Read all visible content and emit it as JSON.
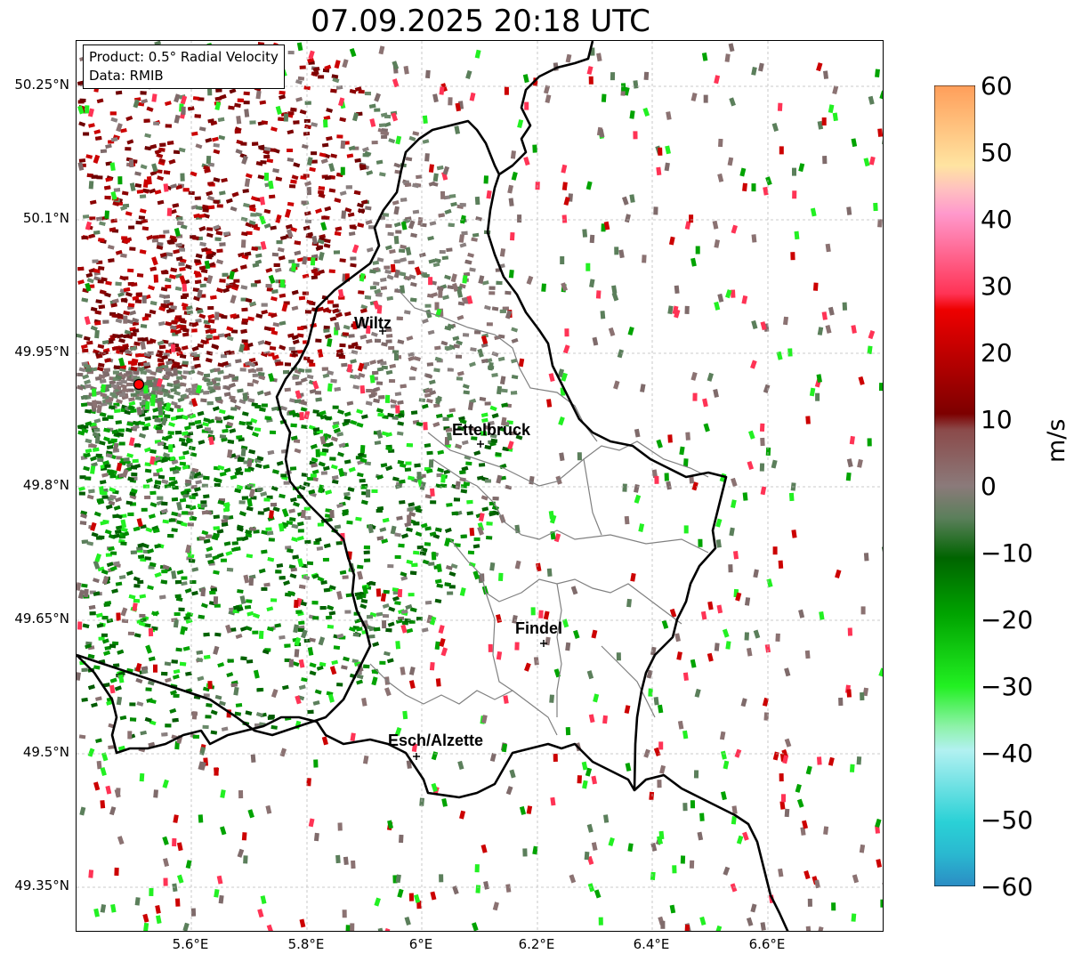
{
  "title": "07.09.2025 20:18 UTC",
  "info": {
    "product": "Product: 0.5° Radial Velocity",
    "data": "Data: RMIB"
  },
  "axes": {
    "lon_ticks": [
      "5.6°E",
      "5.8°E",
      "6°E",
      "6.2°E",
      "6.4°E",
      "6.6°E"
    ],
    "lat_ticks": [
      "50.25°N",
      "50.1°N",
      "49.95°N",
      "49.8°N",
      "49.65°N",
      "49.5°N",
      "49.35°N"
    ],
    "grid": true
  },
  "colorbar": {
    "label": "m/s",
    "ticks": [
      "60",
      "50",
      "40",
      "30",
      "20",
      "10",
      "0",
      "−10",
      "−20",
      "−30",
      "−40",
      "−50",
      "−60"
    ],
    "range": [
      -60,
      60
    ],
    "colors": [
      "#2b8cc4",
      "#2ad1d6",
      "#b2f1f1",
      "#8df2a8",
      "#22f022",
      "#00a300",
      "#006400",
      "#5b7f5b",
      "#8b7272",
      "#7d0000",
      "#cc0000",
      "#ff3355",
      "#ff99cc",
      "#ffe4a1",
      "#ff9e5a"
    ]
  },
  "cities": [
    {
      "name": "Wiltz"
    },
    {
      "name": "Ettelbruck"
    },
    {
      "name": "Findel"
    },
    {
      "name": "Esch/Alzette"
    }
  ],
  "colors": {
    "border": "#000000",
    "cantons": "#808080",
    "radar_site": "#ff0000",
    "grid": "#bbbbbb"
  }
}
